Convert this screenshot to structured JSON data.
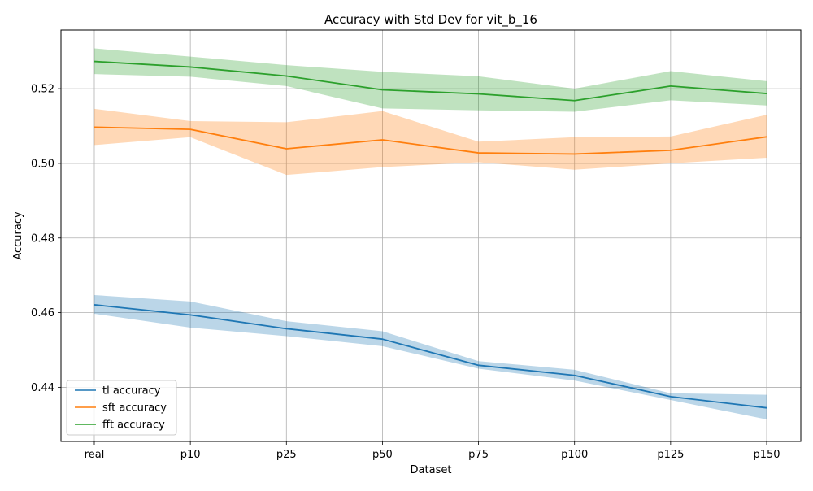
{
  "chart_data": {
    "type": "line",
    "title": "Accuracy with Std Dev for vit_b_16",
    "xlabel": "Dataset",
    "ylabel": "Accuracy",
    "categories": [
      "real",
      "p10",
      "p25",
      "p50",
      "p75",
      "p100",
      "p125",
      "p150"
    ],
    "ylim": [
      0.4255,
      0.5357
    ],
    "yticks": [
      0.44,
      0.46,
      0.48,
      0.5,
      0.52
    ],
    "ytick_labels": [
      "0.44",
      "0.46",
      "0.48",
      "0.50",
      "0.52"
    ],
    "grid": true,
    "legend_position": "lower-left",
    "series": [
      {
        "name": "tl accuracy",
        "color": "#1f77b4",
        "values": [
          0.4621,
          0.4594,
          0.4557,
          0.4529,
          0.4459,
          0.4432,
          0.4375,
          0.4345
        ],
        "lower": [
          0.4597,
          0.456,
          0.4537,
          0.451,
          0.445,
          0.4418,
          0.4366,
          0.4314
        ],
        "upper": [
          0.4647,
          0.463,
          0.4577,
          0.455,
          0.447,
          0.4447,
          0.4384,
          0.438
        ]
      },
      {
        "name": "sft accuracy",
        "color": "#ff7f0e",
        "values": [
          0.5097,
          0.5091,
          0.5039,
          0.5063,
          0.5028,
          0.5025,
          0.5035,
          0.5071
        ],
        "lower": [
          0.5049,
          0.507,
          0.4969,
          0.499,
          0.5003,
          0.4983,
          0.5,
          0.5015
        ],
        "upper": [
          0.5146,
          0.5113,
          0.511,
          0.514,
          0.5058,
          0.507,
          0.5072,
          0.513
        ]
      },
      {
        "name": "fft accuracy",
        "color": "#2ca02c",
        "values": [
          0.5273,
          0.5258,
          0.5234,
          0.5197,
          0.5186,
          0.5168,
          0.5207,
          0.5187
        ],
        "lower": [
          0.5239,
          0.5232,
          0.5207,
          0.5147,
          0.5142,
          0.5138,
          0.5169,
          0.5155
        ],
        "upper": [
          0.5308,
          0.5286,
          0.5263,
          0.5245,
          0.5233,
          0.52,
          0.5247,
          0.522
        ]
      }
    ]
  }
}
